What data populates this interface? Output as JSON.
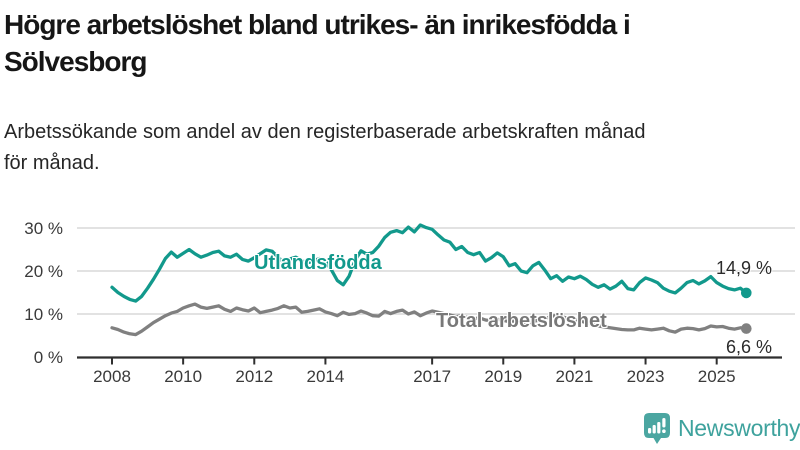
{
  "header": {
    "title_line1": "Högre arbetslöshet bland utrikes- än inrikesfödda i",
    "title_line2": "Sölvesborg",
    "subtitle_line1": "Arbetssökande som andel av den registerbaserade arbetskraften månad",
    "subtitle_line2": "för månad."
  },
  "chart_data": {
    "type": "line",
    "title": "Högre arbetslöshet bland utrikes- än inrikesfödda i Sölvesborg",
    "subtitle": "Arbetssökande som andel av den registerbaserade arbetskraften månad för månad.",
    "unit": "%",
    "x_start": 2008,
    "x_step_years": 0.166667,
    "x_axis_ticks": [
      2008,
      2010,
      2012,
      2014,
      2017,
      2019,
      2021,
      2023,
      2025
    ],
    "x_axis_tick_labels": [
      "2008",
      "2010",
      "2012",
      "2014",
      "2017",
      "2019",
      "2021",
      "2023",
      "2025"
    ],
    "y_axis_ticks": [
      0,
      10,
      20,
      30
    ],
    "y_axis_tick_labels": [
      "0 %",
      "10 %",
      "20 %",
      "30 %"
    ],
    "ylim": [
      0,
      33
    ],
    "grid": "horizontal-only",
    "legend_position": "inline-labels",
    "style": {
      "grid_color": "#d9d9d9",
      "axis_color": "#2f2f2f",
      "tick_text_color": "#3a3a3a"
    },
    "series": [
      {
        "name": "Utlandsfödda",
        "color": "#12998C",
        "end_value": 14.9,
        "end_label": "14,9 %",
        "values": [
          16.2,
          15.0,
          14.1,
          13.4,
          13.0,
          14.1,
          16.0,
          18.1,
          20.4,
          22.9,
          24.4,
          23.2,
          24.1,
          25.0,
          24.0,
          23.2,
          23.7,
          24.3,
          24.6,
          23.5,
          23.2,
          23.9,
          22.7,
          22.3,
          23.1,
          24.0,
          24.9,
          24.6,
          23.2,
          22.0,
          22.8,
          23.2,
          22.4,
          21.9,
          22.4,
          22.9,
          22.3,
          20.3,
          17.8,
          16.8,
          18.8,
          22.5,
          24.7,
          23.9,
          24.3,
          25.8,
          27.8,
          29.0,
          29.4,
          28.9,
          30.2,
          29.1,
          30.7,
          30.1,
          29.7,
          28.4,
          27.2,
          26.7,
          25.0,
          25.7,
          24.3,
          23.8,
          24.3,
          22.3,
          23.1,
          24.2,
          23.3,
          21.2,
          21.7,
          20.0,
          19.6,
          21.2,
          22.0,
          20.2,
          18.2,
          18.9,
          17.6,
          18.6,
          18.2,
          18.8,
          18.0,
          16.9,
          16.2,
          16.8,
          15.8,
          16.5,
          17.6,
          15.9,
          15.6,
          17.3,
          18.4,
          17.9,
          17.3,
          16.0,
          15.3,
          14.9,
          16.0,
          17.3,
          17.8,
          17.0,
          17.7,
          18.7,
          17.3,
          16.5,
          15.9,
          15.6,
          16.0,
          14.9
        ]
      },
      {
        "name": "Total arbetslöshet",
        "color": "#808080",
        "end_value": 6.6,
        "end_label": "6,6 %",
        "values": [
          6.8,
          6.4,
          5.8,
          5.4,
          5.2,
          6.0,
          7.0,
          8.0,
          8.8,
          9.6,
          10.2,
          10.6,
          11.4,
          11.9,
          12.3,
          11.6,
          11.3,
          11.6,
          11.9,
          11.1,
          10.6,
          11.4,
          11.0,
          10.7,
          11.4,
          10.3,
          10.6,
          10.9,
          11.3,
          11.9,
          11.4,
          11.6,
          10.4,
          10.6,
          10.9,
          11.2,
          10.5,
          10.1,
          9.6,
          10.4,
          9.9,
          10.1,
          10.7,
          10.2,
          9.6,
          9.5,
          10.6,
          10.1,
          10.6,
          10.9,
          10.0,
          10.5,
          9.6,
          10.2,
          10.7,
          10.4,
          10.1,
          9.8,
          9.4,
          9.6,
          9.2,
          8.9,
          9.1,
          8.6,
          8.4,
          8.8,
          8.5,
          8.2,
          8.4,
          8.0,
          7.8,
          8.2,
          8.6,
          8.9,
          9.4,
          9.7,
          9.3,
          9.0,
          8.7,
          8.4,
          8.0,
          7.6,
          7.2,
          7.0,
          6.8,
          6.6,
          6.4,
          6.3,
          6.3,
          6.7,
          6.5,
          6.3,
          6.5,
          6.7,
          6.1,
          5.8,
          6.5,
          6.7,
          6.6,
          6.3,
          6.6,
          7.2,
          7.0,
          7.1,
          6.7,
          6.5,
          6.8,
          6.6
        ]
      }
    ]
  },
  "branding": {
    "logo_text": "Newsworthy",
    "logo_icon": "newsworthy-speech-bubble-bar-chart-icon",
    "logo_icon_color": "#4BA6A1",
    "logo_text_color": "#3EA29D"
  }
}
